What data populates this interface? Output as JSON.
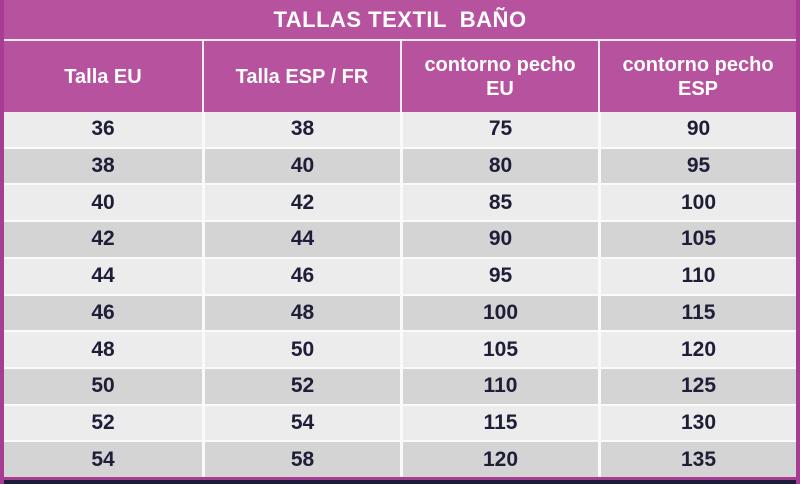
{
  "chart_data": {
    "type": "table",
    "title": "TALLAS TEXTIL  BAÑO",
    "columns": [
      "Talla EU",
      "Talla ESP / FR",
      "contorno pecho EU",
      "contorno pecho ESP"
    ],
    "rows": [
      [
        "36",
        "38",
        "75",
        "90"
      ],
      [
        "38",
        "40",
        "80",
        "95"
      ],
      [
        "40",
        "42",
        "85",
        "100"
      ],
      [
        "42",
        "44",
        "90",
        "105"
      ],
      [
        "44",
        "46",
        "95",
        "110"
      ],
      [
        "46",
        "48",
        "100",
        "115"
      ],
      [
        "48",
        "50",
        "105",
        "120"
      ],
      [
        "50",
        "52",
        "110",
        "125"
      ],
      [
        "52",
        "54",
        "115",
        "130"
      ],
      [
        "54",
        "58",
        "120",
        "135"
      ]
    ],
    "layout": {
      "grid": "on",
      "row_striping": "alternating light/dark gray",
      "header_position": "top"
    }
  },
  "colors": {
    "magenta": "#b7529f",
    "border_magenta": "#a63d92",
    "row_light": "#ececec",
    "row_dark": "#d4d4d4",
    "text_dark": "#1e1e38",
    "header_separator": "#f6edf3",
    "grid_separator": "#fafafa",
    "bottom_navy": "#1d1d3b",
    "header_text": "#ffffff"
  }
}
